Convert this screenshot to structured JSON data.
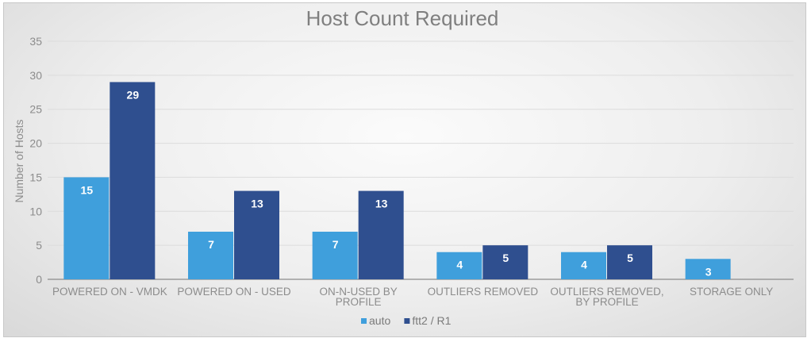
{
  "chart_data": {
    "type": "bar",
    "title": "Host Count Required",
    "xlabel": "",
    "ylabel": "Number of Hosts",
    "ylim": [
      0,
      35
    ],
    "yticks": [
      0,
      5,
      10,
      15,
      20,
      25,
      30,
      35
    ],
    "grid": true,
    "legend_position": "bottom",
    "categories": [
      [
        "POWERED ON - VMDK"
      ],
      [
        "POWERED ON - USED"
      ],
      [
        "ON-N-USED BY",
        "PROFILE"
      ],
      [
        "OUTLIERS REMOVED"
      ],
      [
        "OUTLIERS REMOVED,",
        "BY PROFILE"
      ],
      [
        "STORAGE ONLY"
      ]
    ],
    "series": [
      {
        "name": "auto",
        "color": "#3f9fdc",
        "values": [
          15,
          7,
          7,
          4,
          4,
          3
        ]
      },
      {
        "name": "ftt2 / R1",
        "color": "#2f4f8f",
        "values": [
          29,
          13,
          13,
          5,
          5,
          null
        ]
      }
    ]
  }
}
